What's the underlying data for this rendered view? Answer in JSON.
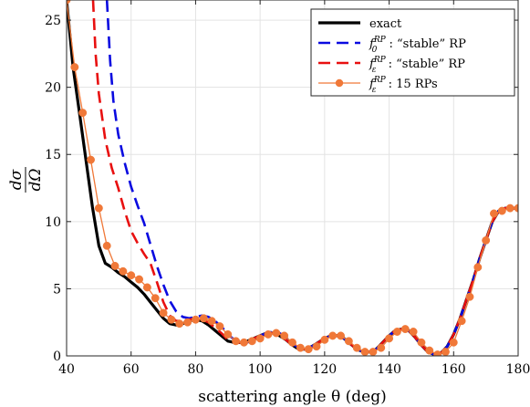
{
  "chart_data": {
    "type": "line",
    "title": "",
    "xlabel": "scattering angle θ (deg)",
    "ylabel_top": "dσ",
    "ylabel_bottom": "dΩ",
    "xlim": [
      40,
      180
    ],
    "ylim": [
      0,
      26.5
    ],
    "xticks": [
      40,
      60,
      80,
      100,
      120,
      140,
      160,
      180
    ],
    "yticks": [
      0,
      5,
      10,
      15,
      20,
      25
    ],
    "grid": true,
    "legend_position": "top-right",
    "series": [
      {
        "name": "exact",
        "label_parts": {
          "base": "exact",
          "sup": "",
          "sub": "",
          "suffix": ""
        },
        "color": "#000000",
        "style": "solid",
        "x": [
          40,
          42,
          44,
          46,
          48,
          50,
          52,
          54,
          56,
          58,
          60,
          62,
          64,
          66,
          68,
          70,
          72,
          74,
          76,
          78,
          80,
          82,
          84,
          86,
          88,
          90,
          92,
          94,
          96,
          98,
          100,
          102,
          104,
          106,
          108,
          110,
          112,
          114,
          116,
          118,
          120,
          122,
          124,
          126,
          128,
          130,
          132,
          134,
          136,
          138,
          140,
          142,
          144,
          146,
          148,
          150,
          152,
          154,
          156,
          158,
          160,
          162,
          164,
          166,
          168,
          170,
          172,
          174,
          176,
          178,
          180
        ],
        "y": [
          26.5,
          21.5,
          18.1,
          14.6,
          11.1,
          8.2,
          6.9,
          6.6,
          6.2,
          5.9,
          5.5,
          5.1,
          4.6,
          4.0,
          3.4,
          2.8,
          2.4,
          2.3,
          2.4,
          2.6,
          2.7,
          2.6,
          2.3,
          1.9,
          1.5,
          1.1,
          1.0,
          1.0,
          1.1,
          1.3,
          1.5,
          1.7,
          1.7,
          1.5,
          1.2,
          0.8,
          0.5,
          0.5,
          0.7,
          1.0,
          1.3,
          1.5,
          1.5,
          1.3,
          0.9,
          0.5,
          0.3,
          0.3,
          0.5,
          1.0,
          1.5,
          1.9,
          2.0,
          1.9,
          1.4,
          0.8,
          0.3,
          0.1,
          0.2,
          0.7,
          1.6,
          2.8,
          4.2,
          5.6,
          7.2,
          8.6,
          10.0,
          10.8,
          11.0,
          11.0,
          11.0
        ]
      },
      {
        "name": "f0 RP : \"stable\" RP",
        "label_parts": {
          "base": "f",
          "sup": "RP",
          "sub": "0",
          "suffix": " : “stable” RP"
        },
        "color": "#0a0ae0",
        "style": "dashed",
        "x": [
          52.5,
          53.5,
          54.5,
          56,
          58,
          60,
          62,
          64,
          66,
          68,
          70,
          72,
          74,
          76,
          78,
          80,
          82,
          84,
          86,
          88,
          90,
          92,
          94,
          96,
          98,
          100,
          102,
          104,
          106,
          108,
          110,
          112,
          114,
          116,
          118,
          120,
          122,
          124,
          126,
          128,
          130,
          132,
          134,
          136,
          138,
          140,
          142,
          144,
          146,
          148,
          150,
          152,
          154,
          156,
          158,
          160,
          162,
          164,
          166,
          168,
          170,
          172,
          174,
          176,
          178,
          180
        ],
        "y": [
          26.5,
          22,
          19,
          16.5,
          14.4,
          12.6,
          11.2,
          9.9,
          8.3,
          6.7,
          5.3,
          4.1,
          3.3,
          2.9,
          2.8,
          2.9,
          3.0,
          2.9,
          2.6,
          2.2,
          1.6,
          1.2,
          1.0,
          1.0,
          1.2,
          1.5,
          1.7,
          1.8,
          1.7,
          1.4,
          0.9,
          0.6,
          0.5,
          0.7,
          1.0,
          1.3,
          1.5,
          1.5,
          1.3,
          0.9,
          0.5,
          0.3,
          0.3,
          0.5,
          1.0,
          1.5,
          1.9,
          2.0,
          1.9,
          1.4,
          0.8,
          0.3,
          0.1,
          0.2,
          0.7,
          1.6,
          2.8,
          4.2,
          5.6,
          7.2,
          8.6,
          10.0,
          10.8,
          11.0,
          11.0,
          11.0
        ]
      },
      {
        "name": "fε RP : \"stable\" RP",
        "label_parts": {
          "base": "f",
          "sup": "RP",
          "sub": "ε",
          "suffix": " : “stable” RP"
        },
        "color": "#e81010",
        "style": "dashed",
        "x": [
          48.2,
          49,
          50,
          52,
          54,
          56,
          58,
          60,
          62,
          64,
          66,
          68,
          70,
          72,
          74,
          76,
          78,
          80,
          82,
          84,
          86,
          88,
          90,
          92,
          94,
          96,
          98,
          100,
          102,
          104,
          106,
          108,
          110,
          112,
          114,
          116,
          118,
          120,
          122,
          124,
          126,
          128,
          130,
          132,
          134,
          136,
          138,
          140,
          142,
          144,
          146,
          148,
          150,
          152,
          154,
          156,
          158,
          160,
          162,
          164,
          166,
          168,
          170,
          172,
          174,
          176,
          178,
          180
        ],
        "y": [
          26.5,
          22.5,
          19.5,
          16.1,
          14.0,
          12.5,
          10.8,
          9.3,
          8.4,
          7.6,
          6.9,
          5.5,
          4.0,
          3.0,
          2.6,
          2.6,
          2.7,
          2.8,
          2.7,
          2.5,
          2.1,
          1.7,
          1.2,
          1.0,
          1.0,
          1.1,
          1.3,
          1.5,
          1.7,
          1.7,
          1.5,
          1.2,
          0.8,
          0.5,
          0.5,
          0.7,
          1.0,
          1.3,
          1.5,
          1.5,
          1.3,
          0.9,
          0.5,
          0.3,
          0.3,
          0.5,
          1.0,
          1.5,
          1.9,
          2.0,
          1.9,
          1.4,
          0.8,
          0.3,
          0.1,
          0.2,
          0.7,
          1.6,
          2.8,
          4.2,
          5.6,
          7.2,
          8.6,
          10.0,
          10.8,
          11.0,
          11.0,
          11.0
        ]
      },
      {
        "name": "fε RP : 15 RPs",
        "label_parts": {
          "base": "f",
          "sup": "RP",
          "sub": "ε",
          "suffix": " : 15 RPs"
        },
        "color": "#f07838",
        "style": "solid-markers",
        "x": [
          40,
          42.5,
          45,
          47.5,
          50,
          52.5,
          55,
          57.5,
          60,
          62.5,
          65,
          67.5,
          70,
          72.5,
          75,
          77.5,
          80,
          82.5,
          85,
          87.5,
          90,
          92.5,
          95,
          97.5,
          100,
          102.5,
          105,
          107.5,
          110,
          112.5,
          115,
          117.5,
          120,
          122.5,
          125,
          127.5,
          130,
          132.5,
          135,
          137.5,
          140,
          142.5,
          145,
          147.5,
          150,
          152.5,
          155,
          157.5,
          160,
          162.5,
          165,
          167.5,
          170,
          172.5,
          175,
          177.5,
          180
        ],
        "y": [
          26.5,
          21.5,
          18.1,
          14.6,
          11.0,
          8.2,
          6.7,
          6.3,
          6.0,
          5.7,
          5.1,
          4.3,
          3.2,
          2.7,
          2.4,
          2.5,
          2.7,
          2.8,
          2.6,
          2.2,
          1.6,
          1.1,
          1.0,
          1.1,
          1.3,
          1.6,
          1.7,
          1.5,
          1.0,
          0.6,
          0.5,
          0.7,
          1.2,
          1.5,
          1.5,
          1.1,
          0.6,
          0.3,
          0.3,
          0.6,
          1.3,
          1.8,
          2.0,
          1.8,
          1.0,
          0.4,
          0.1,
          0.3,
          1.0,
          2.6,
          4.4,
          6.6,
          8.6,
          10.6,
          10.8,
          11.0,
          11.0
        ]
      }
    ]
  }
}
